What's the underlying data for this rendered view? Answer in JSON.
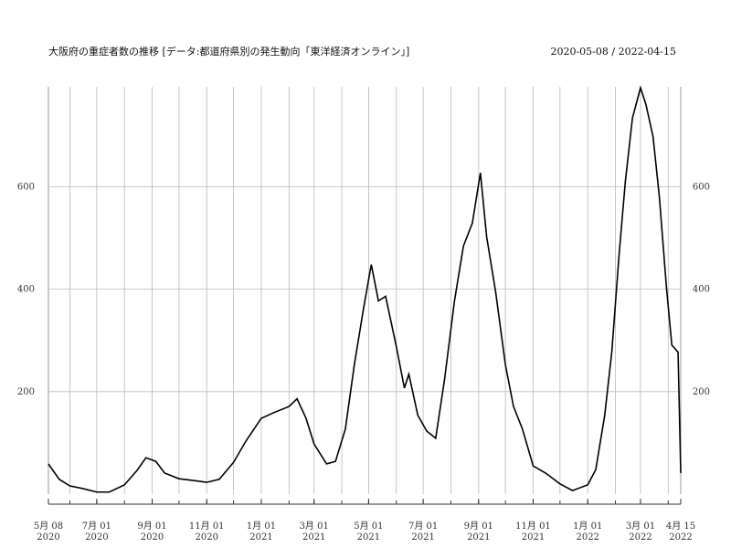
{
  "chart_data": {
    "type": "line",
    "title": "大阪府の重症者数の推移 [データ:都道府県別の発生動向「東洋経済オンライン」]",
    "subtitle": "2020-05-08 / 2022-04-15",
    "x": [
      "2020-05-08",
      "2020-05-20",
      "2020-06-01",
      "2020-06-15",
      "2020-07-01",
      "2020-07-15",
      "2020-08-01",
      "2020-08-15",
      "2020-08-25",
      "2020-09-05",
      "2020-09-15",
      "2020-10-01",
      "2020-10-15",
      "2020-11-01",
      "2020-11-15",
      "2020-12-01",
      "2020-12-15",
      "2021-01-01",
      "2021-01-15",
      "2021-02-01",
      "2021-02-10",
      "2021-02-20",
      "2021-03-01",
      "2021-03-15",
      "2021-03-25",
      "2021-04-05",
      "2021-04-15",
      "2021-04-25",
      "2021-05-04",
      "2021-05-12",
      "2021-05-20",
      "2021-06-01",
      "2021-06-10",
      "2021-06-15",
      "2021-06-25",
      "2021-07-05",
      "2021-07-15",
      "2021-07-25",
      "2021-08-05",
      "2021-08-15",
      "2021-08-25",
      "2021-09-03",
      "2021-09-10",
      "2021-09-20",
      "2021-10-01",
      "2021-10-10",
      "2021-10-20",
      "2021-11-01",
      "2021-11-15",
      "2021-12-01",
      "2021-12-15",
      "2022-01-01",
      "2022-01-10",
      "2022-01-20",
      "2022-01-28",
      "2022-02-05",
      "2022-02-12",
      "2022-02-20",
      "2022-03-01",
      "2022-03-07",
      "2022-03-15",
      "2022-03-22",
      "2022-03-30",
      "2022-04-05",
      "2022-04-12",
      "2022-04-15"
    ],
    "series": [
      {
        "color": "#000000",
        "values": [
          59,
          29,
          16,
          11,
          4,
          4,
          18,
          46,
          71,
          64,
          41,
          30,
          27,
          23,
          29,
          62,
          104,
          148,
          159,
          171,
          186,
          148,
          98,
          59,
          64,
          127,
          252,
          359,
          448,
          377,
          386,
          288,
          207,
          234,
          154,
          123,
          109,
          225,
          377,
          484,
          529,
          627,
          502,
          395,
          252,
          171,
          127,
          55,
          41,
          20,
          7,
          18,
          48,
          154,
          279,
          466,
          609,
          734,
          793,
          761,
          698,
          582,
          404,
          291,
          277,
          41
        ]
      }
    ],
    "xlim": [
      "2020-05-08",
      "2022-04-15"
    ],
    "xticks": [
      {
        "value": "2020-05-08",
        "label": "5月 08\n2020"
      },
      {
        "value": "2020-07-01",
        "label": "7月 01\n2020"
      },
      {
        "value": "2020-09-01",
        "label": "9月 01\n2020"
      },
      {
        "value": "2020-11-01",
        "label": "11月 01\n2020"
      },
      {
        "value": "2021-01-01",
        "label": "1月 01\n2021"
      },
      {
        "value": "2021-03-01",
        "label": "3月 01\n2021"
      },
      {
        "value": "2021-05-01",
        "label": "5月 01\n2021"
      },
      {
        "value": "2021-07-01",
        "label": "7月 01\n2021"
      },
      {
        "value": "2021-09-01",
        "label": "9月 01\n2021"
      },
      {
        "value": "2021-11-01",
        "label": "11月 01\n2021"
      },
      {
        "value": "2022-01-01",
        "label": "1月 01\n2022"
      },
      {
        "value": "2022-03-01",
        "label": "3月 01\n2022"
      },
      {
        "value": "2022-04-15",
        "label": "4月 15\n2022"
      }
    ],
    "xgrid": [
      "2020-06-01",
      "2020-07-01",
      "2020-08-01",
      "2020-09-01",
      "2020-10-01",
      "2020-11-01",
      "2020-12-01",
      "2021-01-01",
      "2021-02-01",
      "2021-03-01",
      "2021-04-01",
      "2021-05-01",
      "2021-06-01",
      "2021-07-01",
      "2021-08-01",
      "2021-09-01",
      "2021-10-01",
      "2021-11-01",
      "2021-12-01",
      "2022-01-01",
      "2022-02-01",
      "2022-03-01",
      "2022-04-01"
    ],
    "ylim": [
      0,
      795
    ],
    "yticks": [
      200,
      400,
      600
    ],
    "grid": true
  }
}
